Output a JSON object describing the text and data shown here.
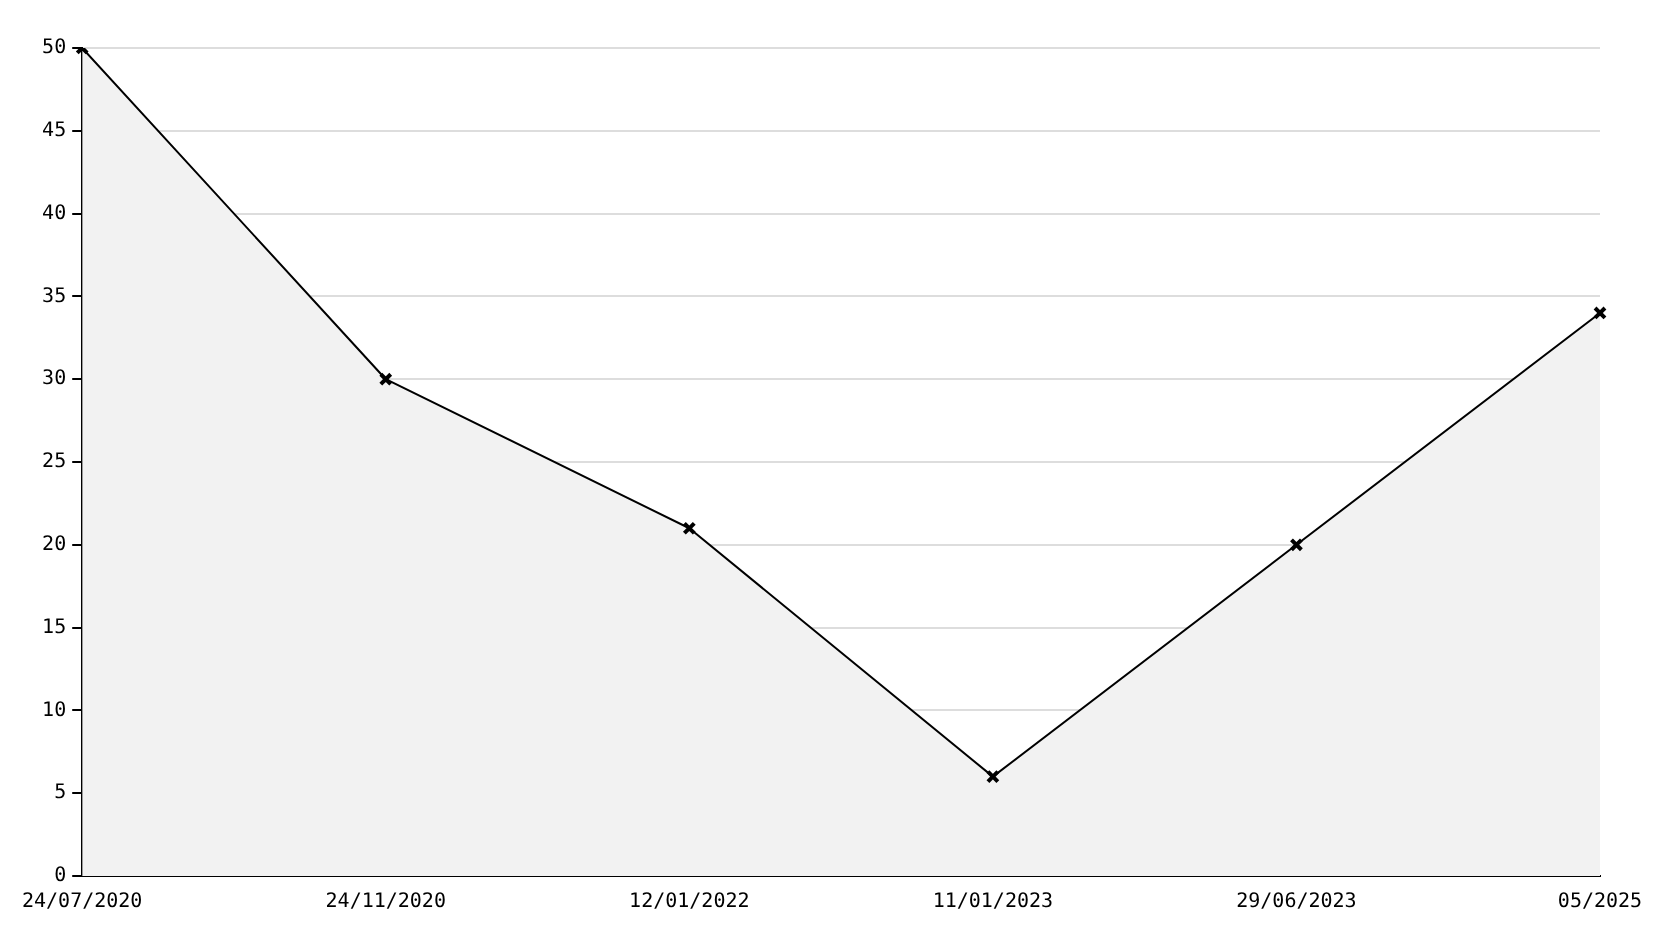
{
  "chart_data": {
    "type": "area",
    "categories": [
      "24/07/2020",
      "24/11/2020",
      "12/01/2022",
      "11/01/2023",
      "29/06/2023",
      "05/2025"
    ],
    "series": [
      {
        "color": "#000000",
        "values": [
          50,
          30,
          21,
          6,
          20,
          34
        ]
      }
    ],
    "ylim": [
      0,
      50
    ],
    "yticks": [
      0,
      5,
      10,
      15,
      20,
      25,
      30,
      35,
      40,
      45,
      50
    ],
    "grid": "y",
    "legend": false,
    "marker": "cross",
    "line_style": "solid"
  }
}
